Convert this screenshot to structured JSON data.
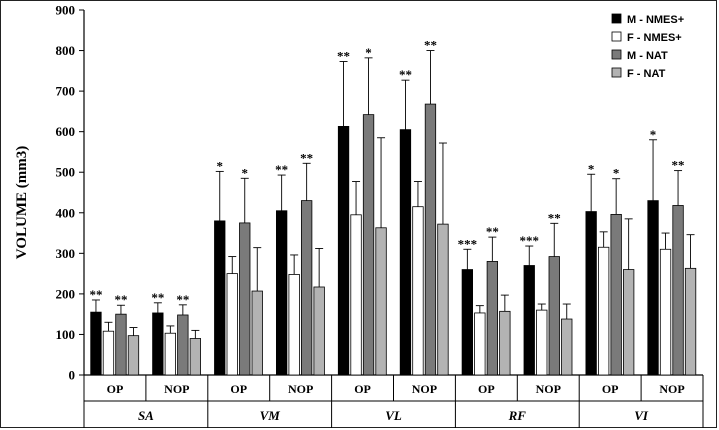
{
  "chart_data": {
    "type": "bar",
    "ylabel": "VOLUME (mm3)",
    "ylim": [
      0,
      900
    ],
    "yticks": [
      "0",
      "100",
      "200",
      "300",
      "400",
      "500",
      "600",
      "700",
      "800",
      "900"
    ],
    "groups": [
      "SA",
      "VM",
      "VL",
      "RF",
      "VI"
    ],
    "subgroups": [
      "OP",
      "NOP"
    ],
    "series": [
      {
        "name": "M - NMES+",
        "color": "#000000",
        "values": [
          155,
          153,
          380,
          405,
          613,
          605,
          260,
          270,
          403,
          430
        ],
        "errors": [
          30,
          25,
          122,
          88,
          160,
          122,
          50,
          48,
          92,
          150
        ],
        "sig": [
          "**",
          "**",
          "*",
          "**",
          "**",
          "**",
          "***",
          "***",
          "*",
          "*"
        ]
      },
      {
        "name": "F - NMES+",
        "color": "#ffffff",
        "values": [
          108,
          103,
          250,
          248,
          395,
          415,
          153,
          160,
          315,
          310
        ],
        "errors": [
          22,
          18,
          42,
          48,
          82,
          62,
          18,
          15,
          38,
          40
        ],
        "sig": [
          "",
          "",
          "",
          "",
          "",
          "",
          "",
          "",
          "",
          ""
        ]
      },
      {
        "name": "M - NAT",
        "color": "#7a7a7a",
        "values": [
          150,
          148,
          375,
          430,
          642,
          668,
          280,
          292,
          396,
          418
        ],
        "errors": [
          22,
          25,
          110,
          92,
          140,
          132,
          60,
          82,
          88,
          86
        ],
        "sig": [
          "**",
          "**",
          "*",
          "**",
          "*",
          "**",
          "**",
          "**",
          "*",
          "**"
        ]
      },
      {
        "name": "F - NAT",
        "color": "#b3b3b3",
        "values": [
          97,
          90,
          207,
          217,
          363,
          372,
          157,
          138,
          260,
          263
        ],
        "errors": [
          20,
          20,
          107,
          95,
          222,
          200,
          40,
          37,
          125,
          83
        ],
        "sig": [
          "",
          "",
          "",
          "",
          "",
          "",
          "",
          "",
          "",
          ""
        ]
      }
    ],
    "legend": [
      "M - NMES+",
      "F - NMES+",
      "M - NAT",
      "F - NAT"
    ],
    "legend_position": "top-right",
    "grid": false
  }
}
